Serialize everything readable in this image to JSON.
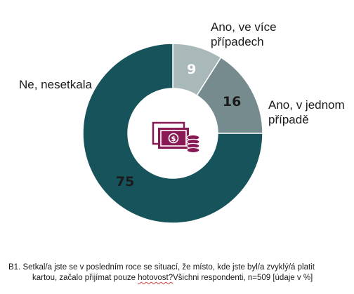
{
  "chart_data": {
    "type": "pie",
    "donut": true,
    "categories": [
      "Ano, ve více případech",
      "Ano, v jednom případě",
      "Ne, nesetkala"
    ],
    "values": [
      9,
      16,
      75
    ],
    "value_labels": [
      "9",
      "16",
      "75"
    ],
    "colors": [
      "#a9b8b9",
      "#758b8d",
      "#16535a"
    ],
    "value_label_colors": [
      "#ffffff",
      "#1a1a1a",
      "#1a1a1a"
    ],
    "start_angle_deg": 0,
    "direction": "clockwise",
    "center_icon": "money-cash-coins-icon",
    "center_icon_color": "#8a1a55",
    "legend": "none"
  },
  "labels": {
    "cat0_line1": "Ano, ve více",
    "cat0_line2": "případech",
    "cat1_line1": "Ano, v jednom",
    "cat1_line2": "případě",
    "cat2_line1": "Ne, nesetkala"
  },
  "footnote": {
    "line1": "B1. Setkal/a jste se v posledním roce se situací, že místo, kde jste byl/a zvyklý/á platit",
    "line2_pre": "kartou, začalo přijímat pouze ",
    "line2_squiggle": "hotovost?",
    "line2_post": "Všichni respondenti, n=509 [údaje v %]"
  }
}
